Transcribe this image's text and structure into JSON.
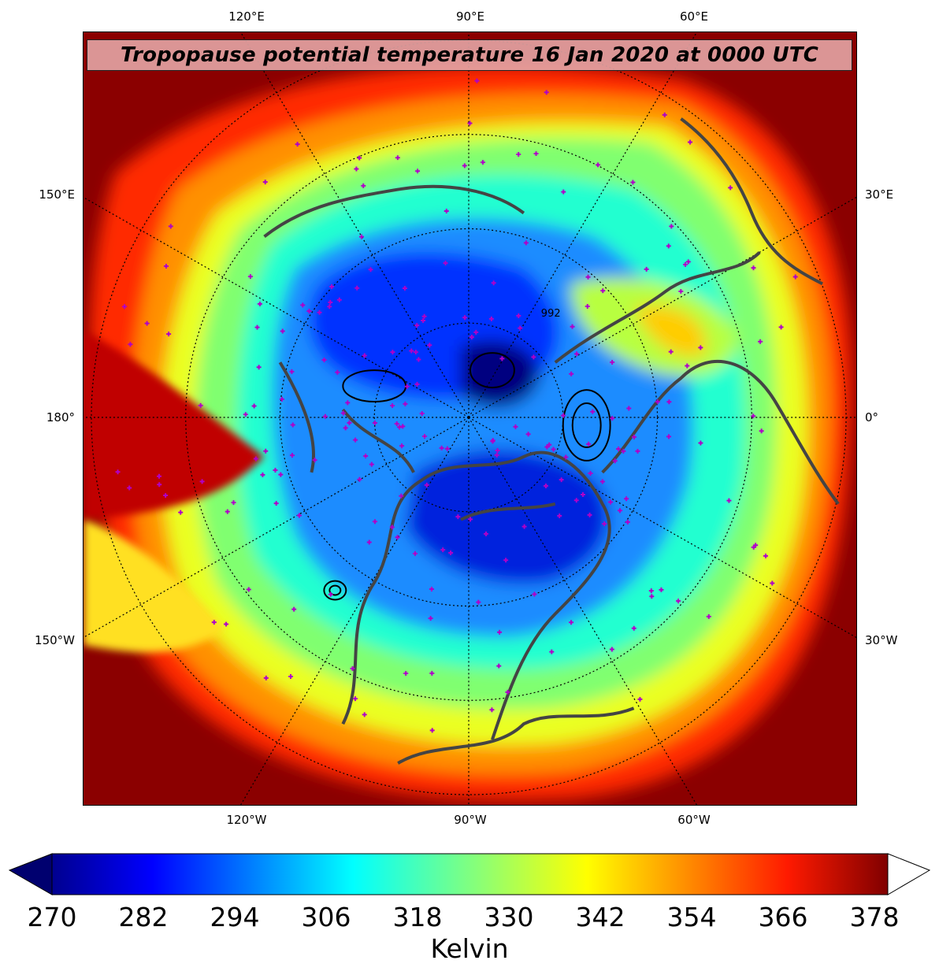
{
  "title": "Tropopause potential temperature 16 Jan 2020 at 0000 UTC",
  "lon_labels": {
    "top": [
      "120°E",
      "90°E",
      "60°E"
    ],
    "bottom": [
      "120°W",
      "90°W",
      "60°W"
    ],
    "left": [
      "150°E",
      "180°",
      "150°W"
    ],
    "right": [
      "30°E",
      "0°",
      "30°W"
    ]
  },
  "contour_label": "992",
  "colorbar": {
    "min": 270,
    "max": 378,
    "ticks": [
      "270",
      "282",
      "294",
      "306",
      "318",
      "330",
      "342",
      "354",
      "366",
      "378"
    ],
    "label": "Kelvin",
    "extend": "both",
    "colormap": "jet"
  },
  "colors": {
    "cold": "#00008b",
    "cool": "#0077ff",
    "mid": "#22ffd0",
    "warm": "#f0ff20",
    "hot": "#ff3300",
    "max": "#8b0000",
    "station_marker": "#b000c8",
    "coastline": "#444444"
  }
}
